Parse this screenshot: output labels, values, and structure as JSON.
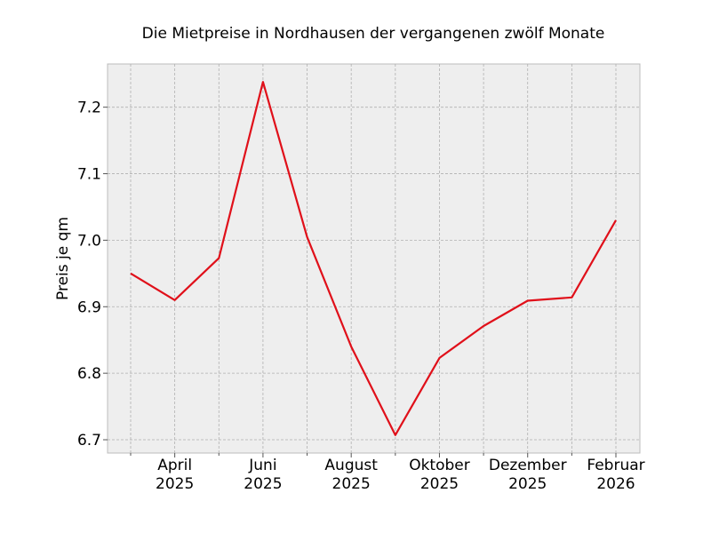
{
  "chart_data": {
    "type": "line",
    "title": "Die Mietpreise in Nordhausen der vergangenen zwölf Monate",
    "xlabel": "",
    "ylabel": "Preis je qm",
    "x": [
      "2025-03",
      "2025-04",
      "2025-05",
      "2025-06",
      "2025-07",
      "2025-08",
      "2025-09",
      "2025-10",
      "2025-11",
      "2025-12",
      "2026-01",
      "2026-02"
    ],
    "series": [
      {
        "name": "Preis je qm",
        "color": "#e0101a",
        "values": [
          6.95,
          6.91,
          6.973,
          7.238,
          7.005,
          6.84,
          6.707,
          6.823,
          6.871,
          6.909,
          6.914,
          7.03
        ]
      }
    ],
    "ylim": [
      6.68,
      7.265
    ],
    "yticks": [
      "6.7",
      "6.8",
      "6.9",
      "7.0",
      "7.1",
      "7.2"
    ],
    "xtick_labels": [
      {
        "index": 1,
        "line1": "April",
        "line2": "2025"
      },
      {
        "index": 3,
        "line1": "Juni",
        "line2": "2025"
      },
      {
        "index": 5,
        "line1": "August",
        "line2": "2025"
      },
      {
        "index": 7,
        "line1": "Oktober",
        "line2": "2025"
      },
      {
        "index": 9,
        "line1": "Dezember",
        "line2": "2025"
      },
      {
        "index": 11,
        "line1": "Februar",
        "line2": "2026"
      }
    ],
    "grid": true
  }
}
